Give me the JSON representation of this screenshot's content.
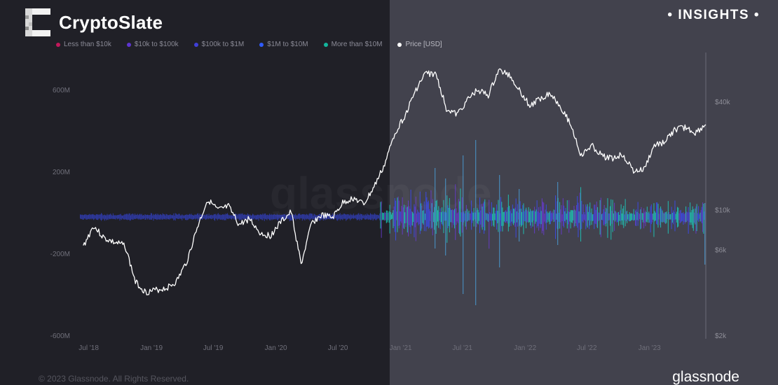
{
  "header": {
    "brand": "CryptoSlate",
    "tag": "• INSIGHTS •"
  },
  "footer": {
    "copyright": "© 2023 Glassnode. All Rights Reserved.",
    "brand": "glassnode"
  },
  "watermark": "glassnode",
  "colors": {
    "left_panel": "#202027",
    "right_panel": "#42424d",
    "price_line": "#ffffff",
    "bars_blue": "#3b4cff",
    "bars_cyan": "#19d6c4",
    "bars_purple": "#6b3bd9"
  },
  "chart_data": {
    "type": "line",
    "legend": [
      {
        "label": "Less than $10k",
        "color": "#c2185b"
      },
      {
        "label": "$10k to $100k",
        "color": "#5e35d1"
      },
      {
        "label": "$100k to $1M",
        "color": "#3f3fd8"
      },
      {
        "label": "$1M to $10M",
        "color": "#2f5bff"
      },
      {
        "label": "More than $10M",
        "color": "#13b59c"
      },
      {
        "label": "Price [USD]",
        "color": "#ffffff"
      }
    ],
    "x_ticks": [
      "Jul '18",
      "Jan '19",
      "Jul '19",
      "Jan '20",
      "Jul '20",
      "Jan '21",
      "Jul '21",
      "Jan '22",
      "Jul '22",
      "Jan '23"
    ],
    "y_left_ticks": [
      "600M",
      "200M",
      "-200M",
      "-600M"
    ],
    "y_left_values": [
      600,
      200,
      -200,
      -600
    ],
    "y_left_range": [
      -600,
      600
    ],
    "y_right_ticks": [
      "$40k",
      "$10k",
      "$6k",
      "$2k"
    ],
    "y_right_values": [
      40000,
      10000,
      6000,
      2000
    ],
    "y_right_scale": "log",
    "series": [
      {
        "name": "Price [USD]",
        "x": [
          "2018-06",
          "2018-07",
          "2018-08",
          "2018-09",
          "2018-10",
          "2018-11",
          "2018-12",
          "2019-01",
          "2019-02",
          "2019-03",
          "2019-04",
          "2019-05",
          "2019-06",
          "2019-07",
          "2019-08",
          "2019-09",
          "2019-10",
          "2019-11",
          "2019-12",
          "2020-01",
          "2020-02",
          "2020-03",
          "2020-04",
          "2020-05",
          "2020-06",
          "2020-07",
          "2020-08",
          "2020-09",
          "2020-10",
          "2020-11",
          "2020-12",
          "2021-01",
          "2021-02",
          "2021-03",
          "2021-04",
          "2021-05",
          "2021-06",
          "2021-07",
          "2021-08",
          "2021-09",
          "2021-10",
          "2021-11",
          "2021-12",
          "2022-01",
          "2022-02",
          "2022-03",
          "2022-04",
          "2022-05",
          "2022-06",
          "2022-07",
          "2022-08",
          "2022-09",
          "2022-10",
          "2022-11",
          "2022-12",
          "2023-01",
          "2023-02",
          "2023-03",
          "2023-04",
          "2023-05",
          "2023-06"
        ],
        "values": [
          6300,
          8200,
          7000,
          6600,
          6400,
          4000,
          3500,
          3600,
          3700,
          4000,
          5200,
          8000,
          11500,
          10000,
          10500,
          8300,
          9000,
          7500,
          7200,
          8600,
          9800,
          5000,
          8500,
          9400,
          9100,
          11000,
          11700,
          10800,
          13500,
          18000,
          27000,
          34000,
          47000,
          58000,
          57000,
          37000,
          34000,
          41000,
          47000,
          43500,
          60000,
          57000,
          47000,
          38000,
          42000,
          45000,
          38000,
          30000,
          20000,
          23000,
          20000,
          19500,
          20500,
          16500,
          16800,
          23000,
          24000,
          28000,
          29000,
          27000,
          30000
        ]
      }
    ]
  }
}
